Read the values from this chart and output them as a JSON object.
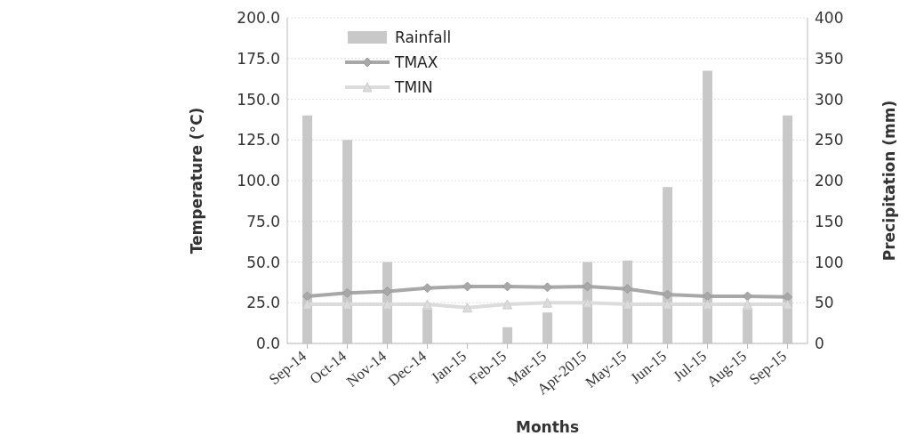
{
  "chart_data": {
    "type": "bar",
    "xlabel": "Months",
    "ylabel": "Temperature (°C)",
    "y2label": "Precipitation (mm)",
    "categories": [
      "Sep-14",
      "Oct-14",
      "Nov-14",
      "Dec-14",
      "Jan-15",
      "Feb-15",
      "Mar-15",
      "Apr-2015",
      "May-15",
      "Jun-15",
      "Jul-15",
      "Aug-15",
      "Sep-15"
    ],
    "series": [
      {
        "name": "Rainfall",
        "axis": "y2",
        "color": "#c8c8c8",
        "values": [
          280,
          250,
          100,
          42,
          0,
          20,
          38,
          100,
          102,
          192,
          335,
          42,
          280
        ]
      },
      {
        "name": "TMAX",
        "type": "line",
        "color": "#a8a8a8",
        "marker": "diamond",
        "values": [
          29,
          31,
          32,
          34,
          35,
          35,
          34.5,
          35,
          33.5,
          30,
          29,
          29,
          28.5
        ]
      },
      {
        "name": "TMIN",
        "type": "line",
        "color": "#dcdcdc",
        "marker": "triangle",
        "values": [
          24,
          24,
          24,
          24,
          22,
          24,
          25,
          25,
          24,
          24,
          24,
          24,
          24
        ]
      }
    ],
    "ylim": [
      0,
      200
    ],
    "yticks": [
      {
        "value": 0,
        "label": "0.0"
      },
      {
        "value": 25,
        "label": "25.0"
      },
      {
        "value": 50,
        "label": "50.0"
      },
      {
        "value": 75,
        "label": "75.0"
      },
      {
        "value": 100,
        "label": "100.0"
      },
      {
        "value": 125,
        "label": "125.0"
      },
      {
        "value": 150,
        "label": "150.0"
      },
      {
        "value": 175,
        "label": "175.0"
      },
      {
        "value": 200,
        "label": "200.0"
      }
    ],
    "y2lim": [
      0,
      400
    ],
    "y2ticks": [
      0,
      50,
      100,
      150,
      200,
      250,
      300,
      350,
      400
    ],
    "grid": "y",
    "legend": "top left"
  }
}
